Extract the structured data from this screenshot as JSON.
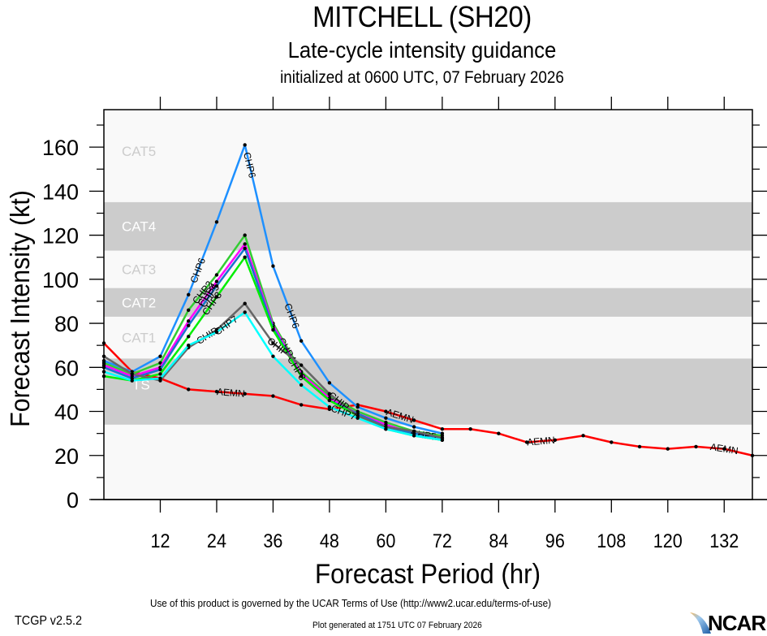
{
  "chart_data": {
    "type": "line",
    "title": "MITCHELL (SH20)",
    "subtitle": "Late-cycle intensity guidance",
    "subtitle2": "initialized at 0600 UTC, 07 February 2026",
    "xlabel": "Forecast Period (hr)",
    "ylabel": "Forecast Intensity (kt)",
    "xlim": [
      0,
      138
    ],
    "ylim": [
      0,
      177
    ],
    "xticks": [
      12,
      24,
      36,
      48,
      60,
      72,
      84,
      96,
      108,
      120,
      132
    ],
    "yticks": [
      0,
      20,
      40,
      60,
      80,
      100,
      120,
      140,
      160
    ],
    "grid": false,
    "legend": "none (inline series labels)",
    "bands": [
      {
        "label": "TS",
        "min": 34,
        "max": 64,
        "shade": "dark"
      },
      {
        "label": "CAT1",
        "min": 64,
        "max": 83,
        "shade": "light"
      },
      {
        "label": "CAT2",
        "min": 83,
        "max": 96,
        "shade": "dark"
      },
      {
        "label": "CAT3",
        "min": 96,
        "max": 113,
        "shade": "light"
      },
      {
        "label": "CAT4",
        "min": 113,
        "max": 135,
        "shade": "dark"
      },
      {
        "label": "CAT5",
        "min": 135,
        "max": 177,
        "shade": "light"
      }
    ],
    "series": [
      {
        "name": "AEMN",
        "color": "#ff0000",
        "x": [
          0,
          6,
          12,
          18,
          24,
          30,
          36,
          42,
          48,
          54,
          60,
          66,
          72,
          78,
          84,
          90,
          96,
          102,
          108,
          114,
          120,
          126,
          132,
          138
        ],
        "y": [
          71,
          58,
          55,
          50,
          49,
          48,
          47,
          43,
          41,
          43,
          40,
          36,
          32,
          32,
          30,
          26,
          27,
          29,
          26,
          24,
          23,
          24,
          23,
          20
        ],
        "label_at": [
          27,
          63,
          93,
          132
        ]
      },
      {
        "name": "CHP6",
        "color": "#1e90ff",
        "x": [
          0,
          6,
          12,
          18,
          24,
          30,
          36,
          42,
          48,
          54,
          60,
          66,
          72
        ],
        "y": [
          63,
          58,
          65,
          93,
          126,
          161,
          106,
          72,
          53,
          42,
          37,
          33,
          30
        ],
        "label_at": [
          20,
          31,
          40
        ]
      },
      {
        "name": "CHP2",
        "color": "#32cd32",
        "x": [
          0,
          6,
          12,
          18,
          24,
          30,
          36,
          42,
          48,
          54,
          60,
          66,
          72
        ],
        "y": [
          62,
          57,
          62,
          86,
          102,
          120,
          80,
          58,
          47,
          40,
          35,
          31,
          29
        ],
        "label_at": [
          21
        ]
      },
      {
        "name": "CHP4",
        "color": "#ff00ff",
        "x": [
          0,
          6,
          12,
          18,
          24,
          30,
          36,
          42,
          48,
          54,
          60,
          66,
          72
        ],
        "y": [
          61,
          56,
          60,
          81,
          99,
          116,
          79,
          57,
          46,
          39,
          34,
          30,
          28
        ],
        "label_at": [
          22,
          39
        ]
      },
      {
        "name": "CHP5",
        "color": "#1874cd",
        "x": [
          0,
          6,
          12,
          18,
          24,
          30,
          36,
          42,
          48,
          54,
          60,
          66,
          72
        ],
        "y": [
          60,
          55,
          59,
          79,
          97,
          114,
          78,
          56,
          45,
          39,
          33,
          30,
          28
        ],
        "label_at": [
          22.5,
          68
        ]
      },
      {
        "name": "CHP3",
        "color": "#00ee00",
        "x": [
          0,
          6,
          12,
          18,
          24,
          30,
          36,
          42,
          48,
          54,
          60,
          66,
          72
        ],
        "y": [
          56,
          54,
          57,
          74,
          92,
          110,
          77,
          56,
          45,
          38,
          32,
          29,
          27
        ],
        "label_at": [
          23,
          41
        ]
      },
      {
        "name": "CHIP",
        "color": "#666666",
        "x": [
          0,
          6,
          12,
          18,
          24,
          30,
          36,
          42,
          48,
          54,
          60,
          66,
          72
        ],
        "y": [
          65,
          57,
          54,
          69,
          77,
          89,
          71,
          61,
          48,
          38,
          33,
          31,
          28
        ],
        "label_at": [
          22,
          37,
          50
        ]
      },
      {
        "name": "CHP7",
        "color": "#00ffff",
        "x": [
          0,
          6,
          12,
          18,
          24,
          30,
          36,
          42,
          48,
          54,
          60,
          66,
          72
        ],
        "y": [
          58,
          54,
          55,
          70,
          76,
          85,
          65,
          52,
          42,
          37,
          32,
          29,
          27
        ],
        "label_at": [
          26,
          51
        ]
      }
    ]
  },
  "footer": {
    "terms": "Use of this product is governed by the UCAR Terms of Use (http://www2.ucar.edu/terms-of-use)",
    "version": "TCGP v2.5.2",
    "generated": "Plot generated at 1751 UTC   07 February 2026",
    "logo": "NCAR"
  }
}
